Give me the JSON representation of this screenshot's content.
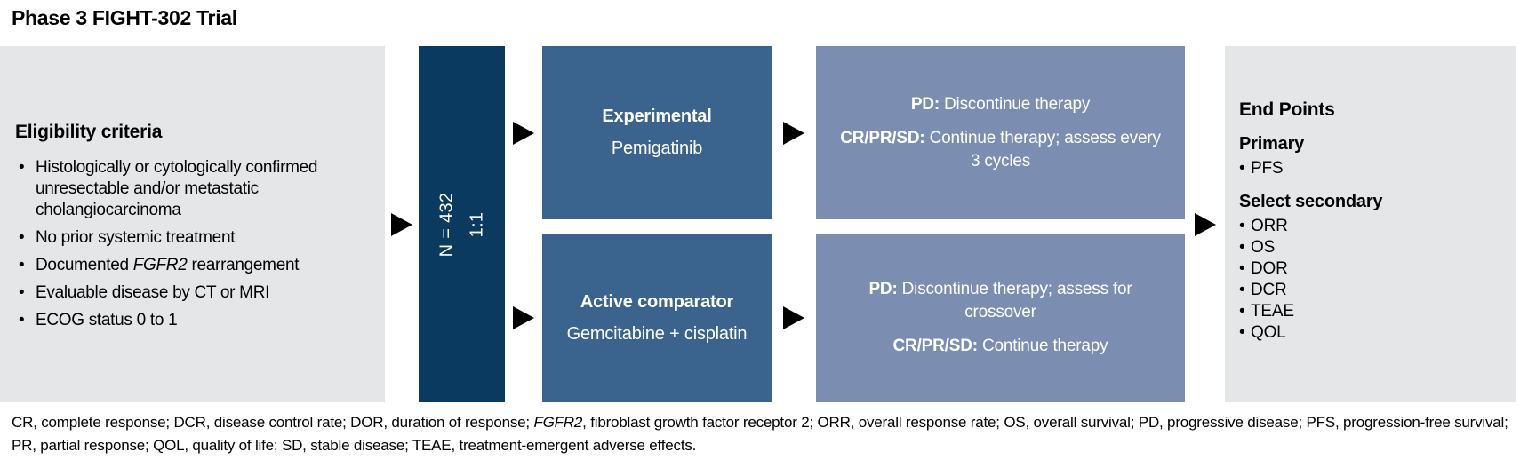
{
  "title": "Phase 3 FIGHT-302 Trial",
  "colors": {
    "navy": "#0b3a61",
    "arm_blue": "#3a648e",
    "outcome_blue": "#7b8db1",
    "box_gray": "#e5e6e8",
    "arrow": "#000000"
  },
  "eligibility": {
    "heading": "Eligibility criteria",
    "items": [
      {
        "text": "Histologically or cytologically confirmed unresectable and/or metastatic cholangiocarcinoma"
      },
      {
        "text": "No prior systemic treatment"
      },
      {
        "pre": "Documented ",
        "gene": "FGFR2",
        "post": " rearrangement"
      },
      {
        "text": "Evaluable disease by CT or MRI"
      },
      {
        "text": "ECOG status 0 to 1"
      }
    ]
  },
  "randomization": {
    "n_label": "N = 432",
    "ratio": "1:1"
  },
  "arms": {
    "experimental": {
      "title": "Experimental",
      "drug": "Pemigatinib"
    },
    "comparator": {
      "title": "Active comparator",
      "drug": "Gemcitabine + cisplatin"
    }
  },
  "outcomes": {
    "experimental": {
      "pd_label": "PD:",
      "pd_text": " Discontinue therapy",
      "cr_label": "CR/PR/SD:",
      "cr_text": " Continue therapy; assess every 3 cycles"
    },
    "comparator": {
      "pd_label": "PD:",
      "pd_text": " Discontinue therapy; assess for crossover",
      "cr_label": "CR/PR/SD:",
      "cr_text": " Continue therapy"
    }
  },
  "endpoints": {
    "heading": "End Points",
    "primary_heading": "Primary",
    "primary_items": [
      "PFS"
    ],
    "secondary_heading": "Select secondary",
    "secondary_items": [
      "ORR",
      "OS",
      "DOR",
      "DCR",
      "TEAE",
      "QOL"
    ]
  },
  "footnote": {
    "pre": "CR, complete response; DCR, disease control rate; DOR, duration of response; ",
    "gene": "FGFR2",
    "post": ", fibroblast growth factor receptor 2; ORR, overall response rate; OS, overall survival; PD, progressive disease; PFS, progression-free survival; PR, partial response; QOL, quality of life; SD, stable disease; TEAE, treatment-emergent adverse effects."
  }
}
